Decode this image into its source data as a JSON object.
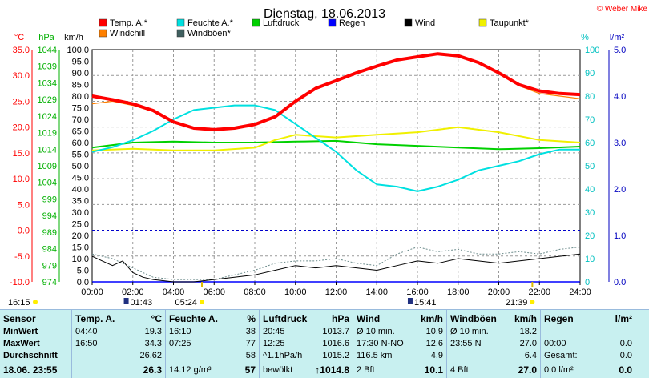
{
  "title": "Dienstag, 18.06.2013",
  "copyright": "© Weber Mike",
  "colors": {
    "temp": "#ff0000",
    "windchill": "#ff8000",
    "feuchte": "#00e0e0",
    "windboeen": "#406060",
    "luftdruck": "#00d000",
    "regen": "#0000ff",
    "wind": "#000000",
    "taupunkt": "#f0f000",
    "tempAxis": "#ff0000",
    "hpaAxis": "#00b000",
    "kmhAxis": "#000000",
    "pctAxis": "#00c0c0",
    "rainAxis": "#0000c0"
  },
  "legend": [
    {
      "key": "temp",
      "label": "Temp. A.*"
    },
    {
      "key": "windchill",
      "label": "Windchill"
    },
    {
      "key": "feuchte",
      "label": "Feuchte A.*"
    },
    {
      "key": "windboeen",
      "label": "Windböen*"
    },
    {
      "key": "luftdruck",
      "label": "Luftdruck"
    },
    {
      "key": "regen",
      "label": "Regen"
    },
    {
      "key": "wind",
      "label": "Wind"
    },
    {
      "key": "taupunkt",
      "label": "Taupunkt*"
    }
  ],
  "axis_titles": {
    "temp": "°C",
    "hpa": "hPa",
    "kmh": "km/h",
    "pct": "%",
    "rain": "l/m²"
  },
  "sun": {
    "sunrise": "05:24",
    "sunset": "21:39",
    "left_time": "16:15"
  },
  "markers": [
    {
      "time": "01:43"
    },
    {
      "time": "15:41"
    }
  ],
  "chart_data": {
    "type": "line",
    "x_ticks": [
      "00:00",
      "02:00",
      "04:00",
      "06:00",
      "08:00",
      "10:00",
      "12:00",
      "14:00",
      "16:00",
      "18:00",
      "20:00",
      "22:00",
      "24:00"
    ],
    "y_temp": {
      "min": -10,
      "max": 35,
      "ticks": [
        "35.0",
        "30.0",
        "25.0",
        "20.0",
        "15.0",
        "10.0",
        "5.0",
        "0.0",
        "-5.0",
        "-10.0"
      ]
    },
    "y_hpa": {
      "ticks": [
        "1044",
        "1039",
        "1034",
        "1029",
        "1024",
        "1019",
        "1014",
        "1009",
        "1004",
        "999",
        "994",
        "989",
        "984",
        "979",
        "974"
      ]
    },
    "y_kmh": {
      "min": 0,
      "max": 100,
      "ticks": [
        "100.0",
        "95.0",
        "90.0",
        "85.0",
        "80.0",
        "75.0",
        "70.0",
        "65.0",
        "60.0",
        "55.0",
        "50.0",
        "45.0",
        "40.0",
        "35.0",
        "30.0",
        "25.0",
        "20.0",
        "15.0",
        "10.0",
        "5.0",
        "0.0"
      ]
    },
    "y_pct": {
      "min": 0,
      "max": 100,
      "ticks": [
        "100",
        "90",
        "80",
        "70",
        "60",
        "50",
        "40",
        "30",
        "20",
        "10",
        "0"
      ]
    },
    "y_rain": {
      "min": 0,
      "max": 5,
      "ticks": [
        "5.0",
        "4.0",
        "3.0",
        "2.0",
        "1.0",
        "0.0"
      ]
    },
    "temp": [
      [
        0,
        26.0
      ],
      [
        1,
        25.3
      ],
      [
        2,
        24.5
      ],
      [
        3,
        23.2
      ],
      [
        4,
        21.0
      ],
      [
        5,
        19.8
      ],
      [
        6,
        19.5
      ],
      [
        7,
        19.8
      ],
      [
        8,
        20.5
      ],
      [
        9,
        22.0
      ],
      [
        10,
        25.0
      ],
      [
        11,
        27.5
      ],
      [
        12,
        29.0
      ],
      [
        13,
        30.5
      ],
      [
        14,
        31.8
      ],
      [
        15,
        33.0
      ],
      [
        16,
        33.6
      ],
      [
        17,
        34.2
      ],
      [
        18,
        33.8
      ],
      [
        19,
        32.5
      ],
      [
        20,
        30.5
      ],
      [
        21,
        28.2
      ],
      [
        22,
        27.0
      ],
      [
        23,
        26.5
      ],
      [
        24,
        26.3
      ]
    ],
    "windchill": [
      [
        0,
        24.5
      ],
      [
        1,
        25.0
      ],
      [
        2,
        24.2
      ],
      [
        3,
        23.0
      ],
      [
        4,
        21.0
      ],
      [
        5,
        19.8
      ],
      [
        6,
        19.5
      ],
      [
        7,
        19.8
      ],
      [
        8,
        20.5
      ],
      [
        9,
        22.0
      ],
      [
        10,
        25.0
      ],
      [
        11,
        27.5
      ],
      [
        12,
        29.0
      ],
      [
        13,
        30.5
      ],
      [
        14,
        31.8
      ],
      [
        15,
        33.0
      ],
      [
        16,
        33.6
      ],
      [
        17,
        34.2
      ],
      [
        18,
        33.8
      ],
      [
        19,
        32.5
      ],
      [
        20,
        30.3
      ],
      [
        21,
        28.0
      ],
      [
        22,
        26.5
      ],
      [
        23,
        26.0
      ],
      [
        24,
        25.5
      ]
    ],
    "feuchte": [
      [
        0,
        56
      ],
      [
        1,
        58
      ],
      [
        2,
        61
      ],
      [
        3,
        65
      ],
      [
        4,
        70
      ],
      [
        5,
        74
      ],
      [
        6,
        75
      ],
      [
        7,
        76
      ],
      [
        8,
        76
      ],
      [
        9,
        74
      ],
      [
        10,
        68
      ],
      [
        11,
        62
      ],
      [
        12,
        56
      ],
      [
        13,
        48
      ],
      [
        14,
        42
      ],
      [
        15,
        41
      ],
      [
        16,
        39
      ],
      [
        17,
        41
      ],
      [
        18,
        44
      ],
      [
        19,
        48
      ],
      [
        20,
        50
      ],
      [
        21,
        52
      ],
      [
        22,
        55
      ],
      [
        23,
        57
      ],
      [
        24,
        57
      ]
    ],
    "taupunkt": [
      [
        0,
        15.5
      ],
      [
        2,
        15.8
      ],
      [
        4,
        15.5
      ],
      [
        6,
        15.5
      ],
      [
        8,
        16.0
      ],
      [
        9,
        17.5
      ],
      [
        10,
        18.5
      ],
      [
        12,
        18.0
      ],
      [
        14,
        18.5
      ],
      [
        16,
        19.0
      ],
      [
        18,
        20.0
      ],
      [
        20,
        19.0
      ],
      [
        22,
        17.5
      ],
      [
        24,
        17.0
      ]
    ],
    "luftdruck": [
      [
        0,
        1014.5
      ],
      [
        2,
        1016.0
      ],
      [
        4,
        1016.3
      ],
      [
        6,
        1016.0
      ],
      [
        8,
        1016.0
      ],
      [
        10,
        1016.3
      ],
      [
        12,
        1016.5
      ],
      [
        14,
        1015.5
      ],
      [
        16,
        1015.0
      ],
      [
        18,
        1014.5
      ],
      [
        20,
        1014.0
      ],
      [
        22,
        1014.3
      ],
      [
        24,
        1014.8
      ]
    ],
    "wind": [
      [
        0,
        11
      ],
      [
        0.5,
        9
      ],
      [
        1,
        7
      ],
      [
        1.5,
        9
      ],
      [
        2,
        4
      ],
      [
        2.5,
        2
      ],
      [
        3,
        1
      ],
      [
        4,
        0
      ],
      [
        5,
        0
      ],
      [
        6,
        1
      ],
      [
        7,
        2
      ],
      [
        8,
        3
      ],
      [
        9,
        5
      ],
      [
        10,
        7
      ],
      [
        11,
        6
      ],
      [
        12,
        7
      ],
      [
        13,
        6
      ],
      [
        14,
        5
      ],
      [
        15,
        7
      ],
      [
        16,
        9
      ],
      [
        17,
        8
      ],
      [
        18,
        10
      ],
      [
        19,
        9
      ],
      [
        20,
        8
      ],
      [
        21,
        9
      ],
      [
        22,
        10
      ],
      [
        23,
        11
      ],
      [
        24,
        12
      ]
    ],
    "windboeen": [
      [
        0,
        12
      ],
      [
        1,
        10
      ],
      [
        2,
        6
      ],
      [
        3,
        2
      ],
      [
        4,
        1
      ],
      [
        5,
        1
      ],
      [
        6,
        1
      ],
      [
        7,
        3
      ],
      [
        8,
        5
      ],
      [
        9,
        8
      ],
      [
        10,
        9
      ],
      [
        11,
        9
      ],
      [
        12,
        10
      ],
      [
        13,
        8
      ],
      [
        14,
        7
      ],
      [
        15,
        12
      ],
      [
        16,
        15
      ],
      [
        17,
        13
      ],
      [
        18,
        14
      ],
      [
        19,
        12
      ],
      [
        20,
        12
      ],
      [
        21,
        13
      ],
      [
        22,
        12
      ],
      [
        23,
        14
      ],
      [
        24,
        15
      ]
    ],
    "regen": [
      [
        0,
        0
      ],
      [
        24,
        0
      ]
    ]
  },
  "stats": {
    "sensor": {
      "head": "Sensor",
      "rows": [
        "MinWert",
        "MaxWert",
        "Durchschnitt"
      ],
      "date": "18.06. 23:55"
    },
    "temp": {
      "head": "Temp. A.",
      "unit": "°C",
      "rows": [
        [
          "04:40",
          "19.3"
        ],
        [
          "16:50",
          "34.3"
        ],
        [
          "",
          "26.62"
        ]
      ],
      "current": "26.3"
    },
    "feuchte": {
      "head": "Feuchte A.",
      "unit": "%",
      "rows": [
        [
          "16:10",
          "38"
        ],
        [
          "07:25",
          "77"
        ],
        [
          "",
          "58"
        ]
      ],
      "extra": "14.12 g/m³",
      "current": "57"
    },
    "luftdruck": {
      "head": "Luftdruck",
      "unit": "hPa",
      "rows": [
        [
          "20:45",
          "1013.7"
        ],
        [
          "12:25",
          "1016.6"
        ],
        [
          "^1.1hPa/h",
          "1015.2"
        ]
      ],
      "extra": "bewölkt",
      "current": "↑1014.8"
    },
    "wind": {
      "head": "Wind",
      "unit": "km/h",
      "rows": [
        [
          "Ø 10 min.",
          "10.9"
        ],
        [
          "17:30  N-NO",
          "12.6"
        ],
        [
          "116.5 km",
          "4.9"
        ]
      ],
      "extra": "2 Bft",
      "current": "10.1"
    },
    "windboeen": {
      "head": "Windböen",
      "unit": "km/h",
      "rows": [
        [
          "Ø 10 min.",
          "18.2"
        ],
        [
          "23:55  N",
          "27.0"
        ],
        [
          "",
          "6.4"
        ]
      ],
      "extra": "4 Bft",
      "current": "27.0"
    },
    "regen": {
      "head": "Regen",
      "unit": "l/m²",
      "rows": [
        [
          "",
          ""
        ],
        [
          "00:00",
          "0.0"
        ],
        [
          "Gesamt:",
          "0.0"
        ]
      ],
      "extra": "0.0 l/m²",
      "current": "0.0"
    }
  }
}
